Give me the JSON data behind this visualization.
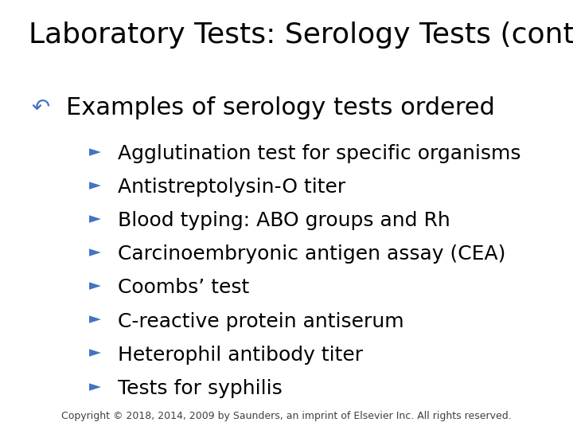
{
  "title": "Laboratory Tests: Serology Tests (cont’d)",
  "background_color": "#ffffff",
  "title_color": "#000000",
  "title_fontsize": 26,
  "bullet1_symbol": "↶",
  "bullet1_text": "Examples of serology tests ordered",
  "bullet1_color": "#000000",
  "bullet1_fontsize": 22,
  "bullet1_symbol_color": "#4472c4",
  "sub_bullet_symbol": "►",
  "sub_bullet_color": "#4472c4",
  "sub_bullet_fontsize": 18,
  "sub_bullets": [
    "Agglutination test for specific organisms",
    "Antistreptolysin-O titer",
    "Blood typing: ABO groups and Rh",
    "Carcinoembryonic antigen assay (CEA)",
    "Coombs’ test",
    "C-reactive protein antiserum",
    "Heterophil antibody titer",
    "Tests for syphilis"
  ],
  "sub_bullet_text_color": "#000000",
  "copyright": "Copyright © 2018, 2014, 2009 by Saunders, an imprint of Elsevier Inc. All rights reserved.",
  "copyright_fontsize": 9,
  "copyright_color": "#404040"
}
